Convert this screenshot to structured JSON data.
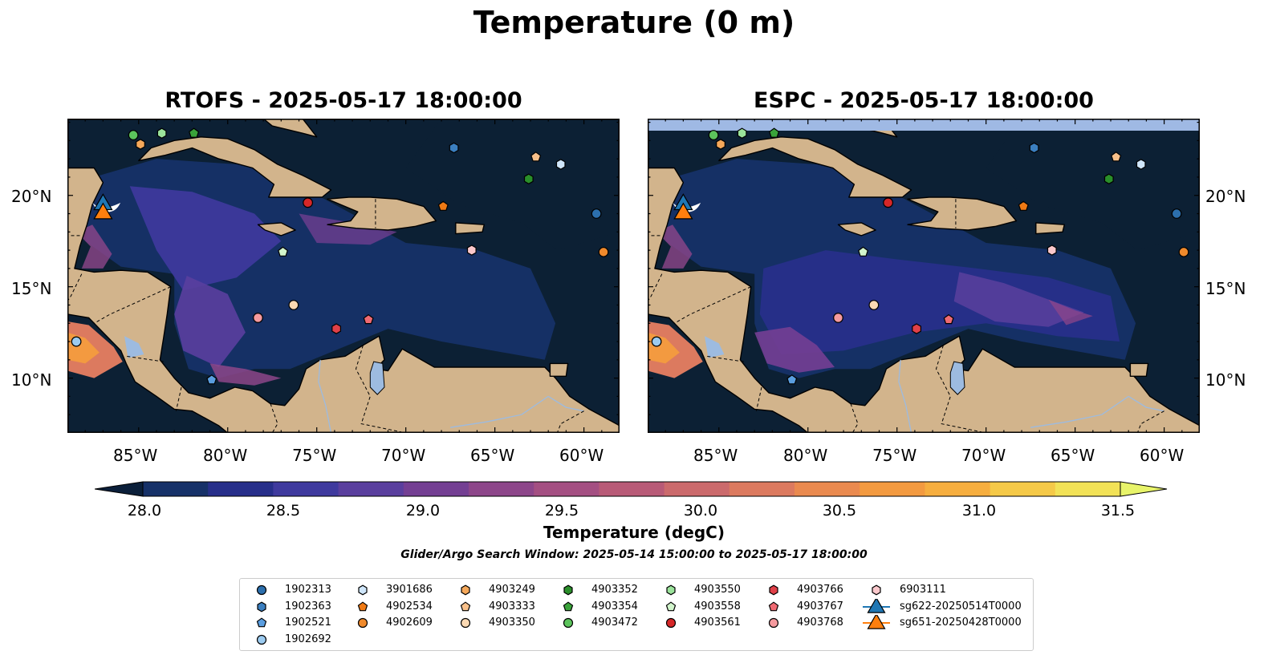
{
  "figure": {
    "title": "Temperature (0 m)",
    "panels": [
      {
        "title": "RTOFS - 2025-05-17 18:00:00"
      },
      {
        "title": "ESPC - 2025-05-17 18:00:00"
      }
    ],
    "lat_labels": [
      "20°N",
      "15°N",
      "10°N"
    ],
    "lon_labels": [
      "85°W",
      "80°W",
      "75°W",
      "70°W",
      "65°W",
      "60°W"
    ],
    "colorbar": {
      "label": "Temperature (degC)",
      "ticks": [
        "28.0",
        "28.5",
        "29.0",
        "29.5",
        "30.0",
        "30.5",
        "31.0",
        "31.5"
      ],
      "colors": [
        "#0b1f3a",
        "#163168",
        "#272f8a",
        "#3f3a9e",
        "#5a3f9e",
        "#743f93",
        "#8d468a",
        "#a44f82",
        "#b85a77",
        "#cb6a6c",
        "#dc7a5f",
        "#ea8a4f",
        "#f39a40",
        "#f6ae3f",
        "#f5c948",
        "#f2e257",
        "#e8f46a"
      ]
    },
    "search_window": "Glider/Argo Search Window: 2025-05-14 15:00:00 to 2025-05-17 18:00:00",
    "map_colors": {
      "ocean_base": "#0c2034",
      "land": "#d2b48c",
      "lake": "#9dbbe0",
      "border": "#000000"
    }
  },
  "legend": [
    {
      "label": "1902313",
      "marker": "circle",
      "color": "#2c6fad"
    },
    {
      "label": "1902363",
      "marker": "hexagon",
      "color": "#3b7fc0"
    },
    {
      "label": "1902521",
      "marker": "pentagon",
      "color": "#5a9ee0"
    },
    {
      "label": "1902692",
      "marker": "circle",
      "color": "#9ccbf0"
    },
    {
      "label": "3901686",
      "marker": "hexagon",
      "color": "#cfe6fb"
    },
    {
      "label": "4902534",
      "marker": "pentagon",
      "color": "#f07a14"
    },
    {
      "label": "4902609",
      "marker": "circle",
      "color": "#f08a2c"
    },
    {
      "label": "4903249",
      "marker": "hexagon",
      "color": "#f5a85a"
    },
    {
      "label": "4903333",
      "marker": "pentagon",
      "color": "#f8c08a"
    },
    {
      "label": "4903350",
      "marker": "circle",
      "color": "#fbd9b3"
    },
    {
      "label": "4903352",
      "marker": "hexagon",
      "color": "#2a8f2a"
    },
    {
      "label": "4903354",
      "marker": "pentagon",
      "color": "#3aa33a"
    },
    {
      "label": "4903472",
      "marker": "circle",
      "color": "#5cc45c"
    },
    {
      "label": "4903550",
      "marker": "hexagon",
      "color": "#9be39b"
    },
    {
      "label": "4903558",
      "marker": "pentagon",
      "color": "#d2f5cc"
    },
    {
      "label": "4903561",
      "marker": "circle",
      "color": "#d62728"
    },
    {
      "label": "4903766",
      "marker": "hexagon",
      "color": "#e04048"
    },
    {
      "label": "4903767",
      "marker": "pentagon",
      "color": "#f06a72"
    },
    {
      "label": "4903768",
      "marker": "circle",
      "color": "#f59a9e"
    },
    {
      "label": "6903111",
      "marker": "hexagon",
      "color": "#fbc8cc"
    },
    {
      "label": "sg622-20250514T0000",
      "marker": "triangle",
      "color": "#1f77b4",
      "line": "#1f77b4"
    },
    {
      "label": "sg651-20250428T0000",
      "marker": "triangle",
      "color": "#ff7f0e",
      "line": "#ff7f0e"
    }
  ],
  "argo_positions": [
    {
      "id": "1902313",
      "lon": -59.3,
      "lat": 19.0
    },
    {
      "id": "1902363",
      "lon": -67.3,
      "lat": 22.6
    },
    {
      "id": "1902521",
      "lon": -80.9,
      "lat": 9.9
    },
    {
      "id": "1902692",
      "lon": -88.5,
      "lat": 12.0
    },
    {
      "id": "3901686",
      "lon": -61.3,
      "lat": 21.7
    },
    {
      "id": "4902534",
      "lon": -67.9,
      "lat": 19.4
    },
    {
      "id": "4902609",
      "lon": -58.9,
      "lat": 16.9
    },
    {
      "id": "4903249",
      "lon": -84.9,
      "lat": 22.8
    },
    {
      "id": "4903333",
      "lon": -62.7,
      "lat": 22.1
    },
    {
      "id": "4903350",
      "lon": -76.3,
      "lat": 14.0
    },
    {
      "id": "4903352",
      "lon": -63.1,
      "lat": 20.9
    },
    {
      "id": "4903354",
      "lon": -81.9,
      "lat": 23.4
    },
    {
      "id": "4903472",
      "lon": -85.3,
      "lat": 23.3
    },
    {
      "id": "4903550",
      "lon": -83.7,
      "lat": 23.4
    },
    {
      "id": "4903558",
      "lon": -76.9,
      "lat": 16.9
    },
    {
      "id": "4903561",
      "lon": -75.5,
      "lat": 19.6
    },
    {
      "id": "4903766",
      "lon": -73.9,
      "lat": 12.7
    },
    {
      "id": "4903767",
      "lon": -72.1,
      "lat": 13.2
    },
    {
      "id": "4903768",
      "lon": -78.3,
      "lat": 13.3
    },
    {
      "id": "6903111",
      "lon": -66.3,
      "lat": 17.0
    }
  ],
  "glider_positions": [
    {
      "id": "sg622-20250514T0000",
      "lon": -87.0,
      "lat": 19.5
    },
    {
      "id": "sg651-20250428T0000",
      "lon": -87.0,
      "lat": 19.0
    }
  ]
}
